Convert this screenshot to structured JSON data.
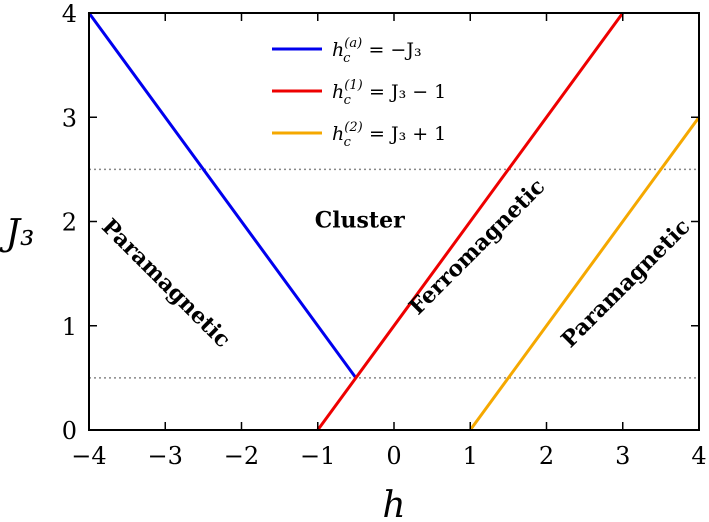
{
  "chart_data": {
    "type": "line",
    "xlabel": "h",
    "ylabel": "J₃",
    "xlim": [
      -4,
      4
    ],
    "ylim": [
      0,
      4
    ],
    "xticks": [
      -4,
      -3,
      -2,
      -1,
      0,
      1,
      2,
      3,
      4
    ],
    "yticks": [
      0,
      1,
      2,
      3,
      4
    ],
    "xtick_labels": [
      "−4",
      "−3",
      "−2",
      "−1",
      "0",
      "1",
      "2",
      "3",
      "4"
    ],
    "ytick_labels": [
      "0",
      "1",
      "2",
      "3",
      "4"
    ],
    "legend_position": "top-center",
    "grid": false,
    "series": [
      {
        "name": "h_c^(a) = −J₃",
        "color": "#0000ee",
        "x": [
          -4,
          -0.5
        ],
        "y": [
          4,
          0.5
        ]
      },
      {
        "name": "h_c^(1) = J₃ − 1",
        "color": "#ee0000",
        "x": [
          -1,
          3
        ],
        "y": [
          0,
          4
        ]
      },
      {
        "name": "h_c^(2) = J₃ + 1",
        "color": "#f5a800",
        "x": [
          1,
          4
        ],
        "y": [
          0,
          3
        ]
      }
    ],
    "hlines": [
      {
        "y": 2.5,
        "style": "dotted",
        "color": "#888888"
      },
      {
        "y": 0.5,
        "style": "dotted",
        "color": "#888888"
      }
    ],
    "annotations": [
      {
        "text": "Paramagnetic",
        "x": -3.0,
        "y": 1.4,
        "rotation": 45
      },
      {
        "text": "Cluster",
        "x": -0.45,
        "y": 2.0,
        "rotation": 0
      },
      {
        "text": "Ferromagnetic",
        "x": 1.1,
        "y": 1.75,
        "rotation": -45
      },
      {
        "text": "Paramagnetic",
        "x": 3.05,
        "y": 1.4,
        "rotation": -45
      }
    ]
  },
  "legend": [
    {
      "base": "h",
      "sub": "c",
      "sup": "(a)",
      "rest": " = −J₃"
    },
    {
      "base": "h",
      "sub": "c",
      "sup": "(1)",
      "rest": " = J₃ − 1"
    },
    {
      "base": "h",
      "sub": "c",
      "sup": "(2)",
      "rest": " = J₃ + 1"
    }
  ]
}
